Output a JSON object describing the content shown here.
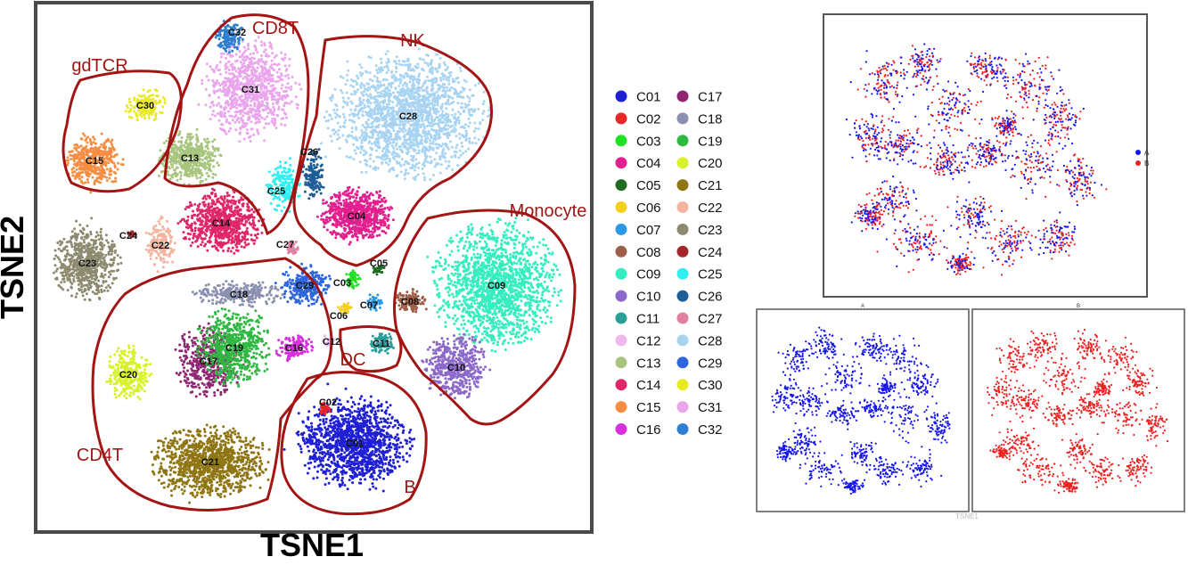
{
  "chart_data": [
    {
      "type": "scatter",
      "xlabel": "TSNE1",
      "ylabel": "TSNE2",
      "grid": false,
      "legend_position": "right",
      "clusters": [
        {
          "id": "C01",
          "color": "#1f1fd6"
        },
        {
          "id": "C02",
          "color": "#e8262a"
        },
        {
          "id": "C03",
          "color": "#22e022"
        },
        {
          "id": "C04",
          "color": "#e41f8f"
        },
        {
          "id": "C05",
          "color": "#1e6b22"
        },
        {
          "id": "C06",
          "color": "#f5cf1f"
        },
        {
          "id": "C07",
          "color": "#2b98e8"
        },
        {
          "id": "C08",
          "color": "#9e5f48"
        },
        {
          "id": "C09",
          "color": "#35eec0"
        },
        {
          "id": "C10",
          "color": "#8b68c9"
        },
        {
          "id": "C11",
          "color": "#2a9f9a"
        },
        {
          "id": "C12",
          "color": "#f1b8ee"
        },
        {
          "id": "C13",
          "color": "#a8c57f"
        },
        {
          "id": "C14",
          "color": "#e02668"
        },
        {
          "id": "C15",
          "color": "#f58d42"
        },
        {
          "id": "C16",
          "color": "#da2fde"
        },
        {
          "id": "C17",
          "color": "#8e2672"
        },
        {
          "id": "C18",
          "color": "#8b8fb0"
        },
        {
          "id": "C19",
          "color": "#2fb842"
        },
        {
          "id": "C20",
          "color": "#d8f129"
        },
        {
          "id": "C21",
          "color": "#8f7613"
        },
        {
          "id": "C22",
          "color": "#f3b49d"
        },
        {
          "id": "C23",
          "color": "#8d8a6f"
        },
        {
          "id": "C24",
          "color": "#a2262a"
        },
        {
          "id": "C25",
          "color": "#2ff0f1"
        },
        {
          "id": "C26",
          "color": "#1f5d97"
        },
        {
          "id": "C27",
          "color": "#e080a2"
        },
        {
          "id": "C28",
          "color": "#a8d4f2"
        },
        {
          "id": "C29",
          "color": "#2f66df"
        },
        {
          "id": "C30",
          "color": "#e9ea1d"
        },
        {
          "id": "C31",
          "color": "#eaa6ec"
        },
        {
          "id": "C32",
          "color": "#2d7fd1"
        }
      ],
      "groups": [
        "CD8T",
        "NK",
        "gdTCR",
        "Monocyte",
        "DC",
        "CD4T",
        "B"
      ],
      "outline_color": "#a31515"
    },
    {
      "type": "scatter",
      "legend": [
        {
          "label": "A",
          "color": "#1414f0"
        },
        {
          "label": "B",
          "color": "#f01e1e"
        }
      ]
    },
    {
      "type": "scatter",
      "title": "A",
      "xlabel": "TSNE1",
      "color": "#1414f0"
    },
    {
      "type": "scatter",
      "title": "B",
      "color": "#f01e1e"
    }
  ]
}
